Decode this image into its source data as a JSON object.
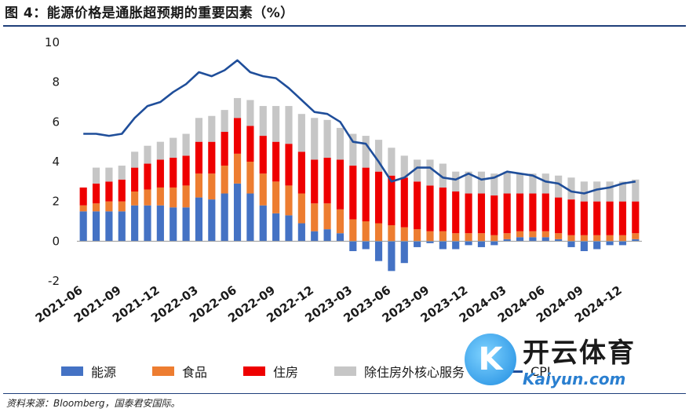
{
  "title": "图 4：能源价格是通胀超预期的重要因素（%）",
  "source": "资料来源：Bloomberg，国泰君安国际。",
  "colors": {
    "energy": "#4472c4",
    "food": "#ed7d31",
    "housing": "#ee0000",
    "core_ex_housing": "#c6c6c6",
    "cpi": "#1f4e9a"
  },
  "watermark": {
    "logo_letter": "K",
    "main": "开云体育",
    "sub": "Kaiyun.com"
  },
  "chart_data": {
    "type": "bar",
    "stacked": true,
    "ylim": [
      -2,
      10
    ],
    "yticks": [
      -2,
      0,
      2,
      4,
      6,
      8,
      10
    ],
    "xtick_labels": [
      "2021-06",
      "2021-09",
      "2021-12",
      "2022-03",
      "2022-06",
      "2022-09",
      "2022-12",
      "2023-03",
      "2023-06",
      "2023-09",
      "2023-12",
      "2024-03",
      "2024-06",
      "2024-09",
      "2024-12"
    ],
    "categories": [
      "2021-06",
      "2021-07",
      "2021-08",
      "2021-09",
      "2021-10",
      "2021-11",
      "2021-12",
      "2022-01",
      "2022-02",
      "2022-03",
      "2022-04",
      "2022-05",
      "2022-06",
      "2022-07",
      "2022-08",
      "2022-09",
      "2022-10",
      "2022-11",
      "2022-12",
      "2023-01",
      "2023-02",
      "2023-03",
      "2023-04",
      "2023-05",
      "2023-06",
      "2023-07",
      "2023-08",
      "2023-09",
      "2023-10",
      "2023-11",
      "2023-12",
      "2024-01",
      "2024-02",
      "2024-03",
      "2024-04",
      "2024-05",
      "2024-06",
      "2024-07",
      "2024-08",
      "2024-09",
      "2024-10",
      "2024-11",
      "2024-12",
      "2025-01"
    ],
    "series": [
      {
        "name": "能源",
        "key": "energy",
        "values": [
          1.5,
          1.5,
          1.5,
          1.5,
          1.8,
          1.8,
          1.8,
          1.7,
          1.7,
          2.2,
          2.1,
          2.4,
          2.9,
          2.4,
          1.8,
          1.4,
          1.3,
          0.9,
          0.5,
          0.6,
          0.4,
          -0.5,
          -0.4,
          -1.0,
          -1.5,
          -1.1,
          -0.3,
          -0.1,
          -0.4,
          -0.4,
          -0.2,
          -0.3,
          -0.2,
          0.1,
          0.2,
          0.2,
          0.2,
          0.1,
          -0.3,
          -0.5,
          -0.4,
          -0.2,
          -0.2,
          0.1
        ]
      },
      {
        "name": "食品",
        "key": "food",
        "values": [
          0.3,
          0.4,
          0.5,
          0.5,
          0.7,
          0.8,
          0.9,
          1.0,
          1.1,
          1.2,
          1.3,
          1.4,
          1.5,
          1.6,
          1.6,
          1.6,
          1.5,
          1.5,
          1.4,
          1.3,
          1.2,
          1.1,
          1.0,
          0.9,
          0.8,
          0.7,
          0.6,
          0.5,
          0.5,
          0.4,
          0.4,
          0.4,
          0.3,
          0.3,
          0.3,
          0.3,
          0.3,
          0.3,
          0.3,
          0.3,
          0.3,
          0.3,
          0.3,
          0.3
        ]
      },
      {
        "name": "住房",
        "key": "housing",
        "values": [
          0.9,
          1.0,
          1.0,
          1.1,
          1.2,
          1.3,
          1.4,
          1.5,
          1.5,
          1.6,
          1.6,
          1.7,
          1.8,
          1.8,
          1.9,
          2.0,
          2.1,
          2.1,
          2.2,
          2.3,
          2.5,
          2.7,
          2.7,
          2.6,
          2.5,
          2.5,
          2.4,
          2.3,
          2.2,
          2.1,
          2.0,
          2.0,
          2.0,
          2.0,
          1.9,
          1.9,
          1.9,
          1.8,
          1.8,
          1.7,
          1.7,
          1.7,
          1.7,
          1.6
        ]
      },
      {
        "name": "除住房外核心服务",
        "key": "core_ex_housing",
        "values": [
          0.0,
          0.8,
          0.7,
          0.7,
          0.8,
          0.9,
          0.9,
          1.0,
          1.1,
          1.2,
          1.3,
          1.1,
          1.0,
          1.3,
          1.5,
          1.8,
          1.9,
          1.9,
          2.1,
          1.9,
          1.6,
          1.6,
          1.6,
          1.6,
          1.4,
          1.1,
          1.1,
          1.3,
          1.2,
          1.0,
          1.1,
          1.1,
          1.1,
          1.1,
          1.0,
          1.0,
          1.0,
          1.1,
          1.1,
          1.0,
          1.0,
          1.0,
          1.0,
          1.1
        ]
      }
    ],
    "line": {
      "name": "CPI",
      "key": "cpi",
      "values": [
        5.4,
        5.4,
        5.3,
        5.4,
        6.2,
        6.8,
        7.0,
        7.5,
        7.9,
        8.5,
        8.3,
        8.6,
        9.1,
        8.5,
        8.3,
        8.2,
        7.7,
        7.1,
        6.5,
        6.4,
        6.0,
        5.0,
        4.9,
        4.0,
        3.0,
        3.2,
        3.7,
        3.7,
        3.2,
        3.1,
        3.4,
        3.1,
        3.2,
        3.5,
        3.4,
        3.3,
        3.0,
        2.9,
        2.5,
        2.4,
        2.6,
        2.7,
        2.9,
        3.0
      ]
    },
    "legend": [
      {
        "label": "能源",
        "key": "energy"
      },
      {
        "label": "食品",
        "key": "food"
      },
      {
        "label": "住房",
        "key": "housing"
      },
      {
        "label": "除住房外核心服务",
        "key": "core_ex_housing"
      },
      {
        "label": "CPI",
        "key": "cpi",
        "kind": "line"
      }
    ]
  }
}
